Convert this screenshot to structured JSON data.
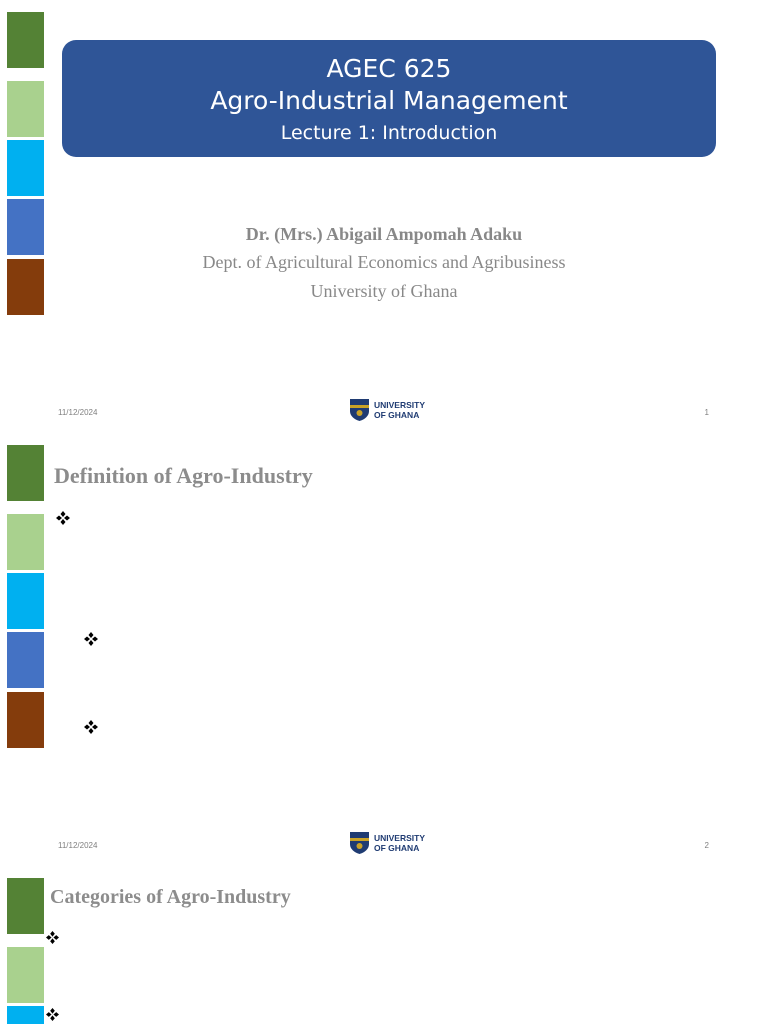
{
  "colors": {
    "square_dark_green": "#548235",
    "square_light_green": "#a9d18e",
    "square_cyan": "#00b0f0",
    "square_blue": "#4472c4",
    "square_brown": "#843c0c",
    "title_box": "#2f5597",
    "logo_navy": "#1f3b72",
    "logo_gold": "#c9a227"
  },
  "slides": [
    {
      "course_code": "AGEC 625",
      "course_title": "Agro-Industrial Management",
      "lecture_title": "Lecture 1: Introduction",
      "author_name": "Dr. (Mrs.) Abigail Ampomah Adaku",
      "author_dept": "Dept. of Agricultural Economics and Agribusiness",
      "author_university": "University of Ghana",
      "footer_date": "11/12/2024",
      "logo_line1": "UNIVERSITY",
      "logo_line2": "OF GHANA",
      "page_number": "1"
    },
    {
      "title": "Definition of Agro-Industry",
      "footer_date": "11/12/2024",
      "logo_line1": "UNIVERSITY",
      "logo_line2": "OF GHANA",
      "page_number": "2"
    },
    {
      "title": "Categories of Agro-Industry"
    }
  ],
  "icons": {
    "bullet": "diamond-bullet-icon",
    "logo": "university-crest-icon"
  }
}
